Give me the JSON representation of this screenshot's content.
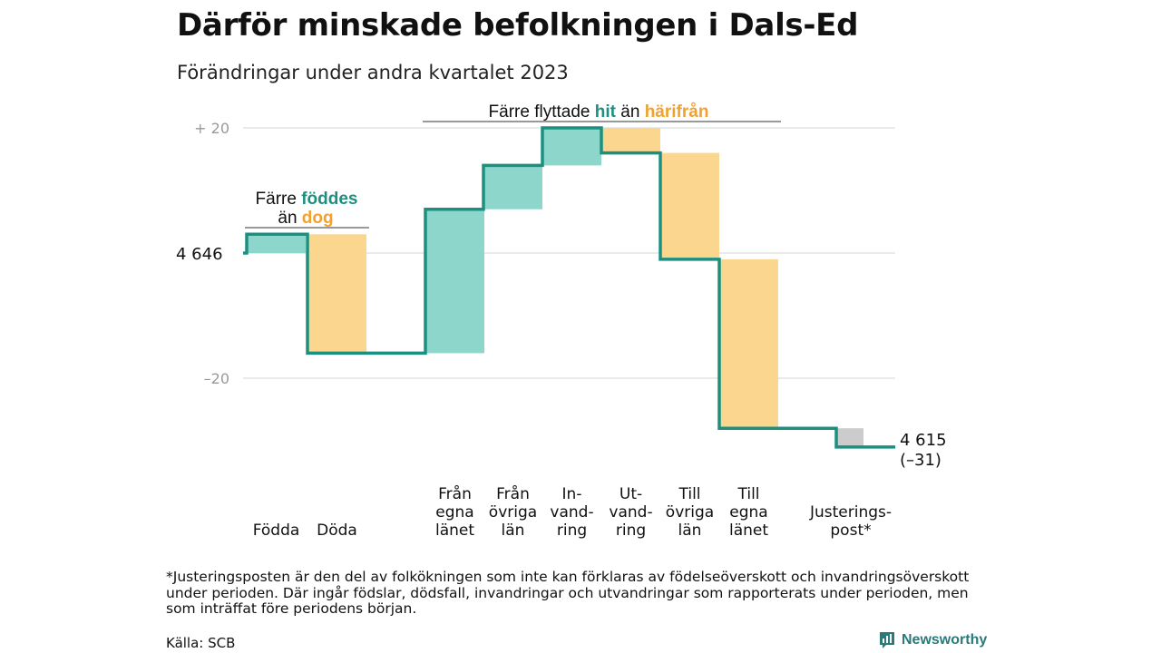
{
  "title": "Därför minskade befolkningen i Dals-Ed",
  "subtitle": "Förändringar under andra kvartalet 2023",
  "chart_data": {
    "type": "waterfall",
    "start_value": 4646,
    "start_label": "4 646",
    "end_label": "4 615",
    "end_change_label": "(–31)",
    "y_ticks": [
      {
        "value": 20,
        "label": "+  20"
      },
      {
        "value": 0,
        "label": ""
      },
      {
        "value": -20,
        "label": "–20"
      }
    ],
    "steps": [
      {
        "label": "Födda",
        "delta": 3,
        "kind": "in"
      },
      {
        "label": "Döda",
        "delta": -19,
        "kind": "out"
      },
      {
        "label": "Från egna länet",
        "delta": 23,
        "kind": "in"
      },
      {
        "label": "Från övriga län",
        "delta": 7,
        "kind": "in"
      },
      {
        "label": "In- vand- ring",
        "delta": 6,
        "kind": "in"
      },
      {
        "label": "Ut- vand- ring",
        "delta": -4,
        "kind": "out"
      },
      {
        "label": "Till övriga län",
        "delta": -17,
        "kind": "out"
      },
      {
        "label": "Till egna länet",
        "delta": -27,
        "kind": "out"
      },
      {
        "label": "Justerings- post*",
        "delta": -3,
        "kind": "adjust"
      }
    ],
    "annotations": {
      "births_deaths": {
        "line1_pre": "Färre ",
        "line1_hl": "föddes",
        "line2_pre": "än ",
        "line2_hl": "dog"
      },
      "migration": {
        "pre": "Färre flyttade ",
        "hl1": "hit",
        "mid": " än ",
        "hl2": "härifrån"
      }
    },
    "colors": {
      "in": "#8dd6cc",
      "out": "#fbd68e",
      "adjust": "#cccccc",
      "line": "#1c9080",
      "highlight_in": "#1c9080",
      "highlight_out": "#f2a12e",
      "grid": "#e3e3e3",
      "tick_text": "#999999"
    }
  },
  "footnote": "*Justeringsposten är den del av folkökningen som inte kan förklaras av födelseöverskott och invandringsöverskott under perioden. Där ingår födslar, dödsfall, invandringar och utvandringar som rapporterats under perioden, men som inträffat före periodens början.",
  "source": "Källa: SCB",
  "brand": "Newsworthy"
}
